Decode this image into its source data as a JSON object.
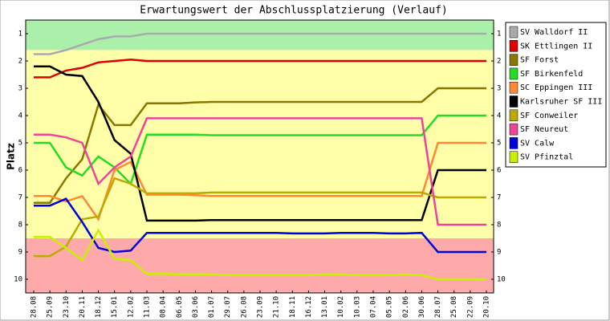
{
  "chart_data": {
    "type": "line",
    "title": "Erwartungswert der Abschlussplatzierung (Verlauf)",
    "y_label": "Platz",
    "categories": [
      "28.08",
      "25.09",
      "23.10",
      "20.11",
      "18.12",
      "15.01",
      "12.02",
      "11.03",
      "08.04",
      "06.05",
      "03.06",
      "01.07",
      "29.07",
      "26.08",
      "23.09",
      "21.10",
      "18.11",
      "16.12",
      "13.01",
      "10.02",
      "10.03",
      "07.04",
      "05.05",
      "02.06",
      "30.06",
      "28.07",
      "25.08",
      "22.09",
      "20.10"
    ],
    "ylim": [
      10.5,
      0.5
    ],
    "yticks": [
      1,
      2,
      3,
      4,
      5,
      6,
      7,
      8,
      9,
      10
    ],
    "bands": [
      {
        "from": 0.5,
        "to": 1.6,
        "color": "#aaf0aa"
      },
      {
        "from": 1.6,
        "to": 8.5,
        "color": "#ffffaa"
      },
      {
        "from": 8.5,
        "to": 10.5,
        "color": "#ffaaaa"
      }
    ],
    "series": [
      {
        "name": "SV Walldorf II",
        "color": "#aaaaaa",
        "values": [
          1.75,
          1.75,
          1.6,
          1.4,
          1.2,
          1.1,
          1.1,
          1.0,
          1.0,
          1.0,
          1.0,
          1.0,
          1.0,
          1.0,
          1.0,
          1.0,
          1.0,
          1.0,
          1.0,
          1.0,
          1.0,
          1.0,
          1.0,
          1.0,
          1.0,
          1.0,
          1.0,
          1.0,
          1.0
        ]
      },
      {
        "name": "SK Ettlingen II",
        "color": "#dd0000",
        "values": [
          2.6,
          2.6,
          2.35,
          2.25,
          2.05,
          2.0,
          1.95,
          2.0,
          2.0,
          2.0,
          2.0,
          2.0,
          2.0,
          2.0,
          2.0,
          2.0,
          2.0,
          2.0,
          2.0,
          2.0,
          2.0,
          2.0,
          2.0,
          2.0,
          2.0,
          2.0,
          2.0,
          2.0,
          2.0
        ]
      },
      {
        "name": "SF Forst",
        "color": "#887700",
        "values": [
          7.2,
          7.2,
          6.3,
          5.6,
          3.6,
          4.35,
          4.35,
          3.55,
          3.55,
          3.55,
          3.52,
          3.5,
          3.5,
          3.5,
          3.5,
          3.5,
          3.5,
          3.5,
          3.5,
          3.5,
          3.5,
          3.5,
          3.5,
          3.5,
          3.5,
          3.0,
          3.0,
          3.0,
          3.0
        ]
      },
      {
        "name": "SF Birkenfeld",
        "color": "#22dd22",
        "values": [
          5.0,
          5.0,
          5.9,
          6.2,
          5.5,
          5.9,
          6.5,
          4.7,
          4.7,
          4.7,
          4.7,
          4.72,
          4.72,
          4.72,
          4.72,
          4.72,
          4.72,
          4.72,
          4.72,
          4.72,
          4.72,
          4.72,
          4.72,
          4.72,
          4.72,
          4.0,
          4.0,
          4.0,
          4.0
        ]
      },
      {
        "name": "SC Eppingen III",
        "color": "#ff8833",
        "values": [
          6.95,
          6.95,
          7.15,
          6.95,
          7.8,
          6.0,
          5.7,
          6.9,
          6.9,
          6.9,
          6.92,
          6.95,
          6.95,
          6.95,
          6.95,
          6.95,
          6.95,
          6.95,
          6.95,
          6.95,
          6.95,
          6.95,
          6.95,
          6.95,
          6.95,
          5.0,
          5.0,
          5.0,
          5.0
        ]
      },
      {
        "name": "Karlsruher SF III",
        "color": "#000000",
        "values": [
          2.2,
          2.2,
          2.5,
          2.55,
          3.5,
          4.9,
          5.4,
          7.85,
          7.85,
          7.85,
          7.85,
          7.83,
          7.83,
          7.83,
          7.83,
          7.83,
          7.83,
          7.83,
          7.83,
          7.83,
          7.83,
          7.83,
          7.83,
          7.83,
          7.83,
          6.0,
          6.0,
          6.0,
          6.0
        ]
      },
      {
        "name": "SF Conweiler",
        "color": "#bbaa00",
        "values": [
          9.15,
          9.15,
          8.8,
          7.8,
          7.7,
          6.3,
          6.5,
          6.85,
          6.85,
          6.85,
          6.85,
          6.82,
          6.82,
          6.82,
          6.82,
          6.82,
          6.82,
          6.82,
          6.82,
          6.82,
          6.82,
          6.82,
          6.82,
          6.82,
          6.82,
          7.0,
          7.0,
          7.0,
          7.0
        ]
      },
      {
        "name": "SF Neureut",
        "color": "#ee4499",
        "values": [
          4.7,
          4.7,
          4.8,
          5.0,
          6.5,
          5.9,
          5.5,
          4.1,
          4.1,
          4.1,
          4.1,
          4.1,
          4.1,
          4.1,
          4.1,
          4.1,
          4.1,
          4.1,
          4.1,
          4.1,
          4.1,
          4.1,
          4.1,
          4.1,
          4.1,
          8.0,
          8.0,
          8.0,
          8.0
        ]
      },
      {
        "name": "SV Calw",
        "color": "#0000dd",
        "values": [
          7.3,
          7.3,
          7.05,
          7.9,
          8.85,
          9.0,
          8.95,
          8.3,
          8.3,
          8.3,
          8.3,
          8.3,
          8.3,
          8.3,
          8.3,
          8.3,
          8.32,
          8.32,
          8.32,
          8.3,
          8.3,
          8.3,
          8.32,
          8.32,
          8.3,
          9.0,
          9.0,
          9.0,
          9.0
        ]
      },
      {
        "name": "SV Pfinztal",
        "color": "#ccee00",
        "values": [
          8.45,
          8.45,
          8.85,
          9.3,
          8.2,
          9.25,
          9.3,
          9.8,
          9.8,
          9.82,
          9.82,
          9.82,
          9.85,
          9.85,
          9.85,
          9.85,
          9.85,
          9.85,
          9.82,
          9.82,
          9.85,
          9.85,
          9.85,
          9.82,
          9.85,
          10.0,
          10.0,
          10.0,
          10.0
        ]
      }
    ]
  }
}
